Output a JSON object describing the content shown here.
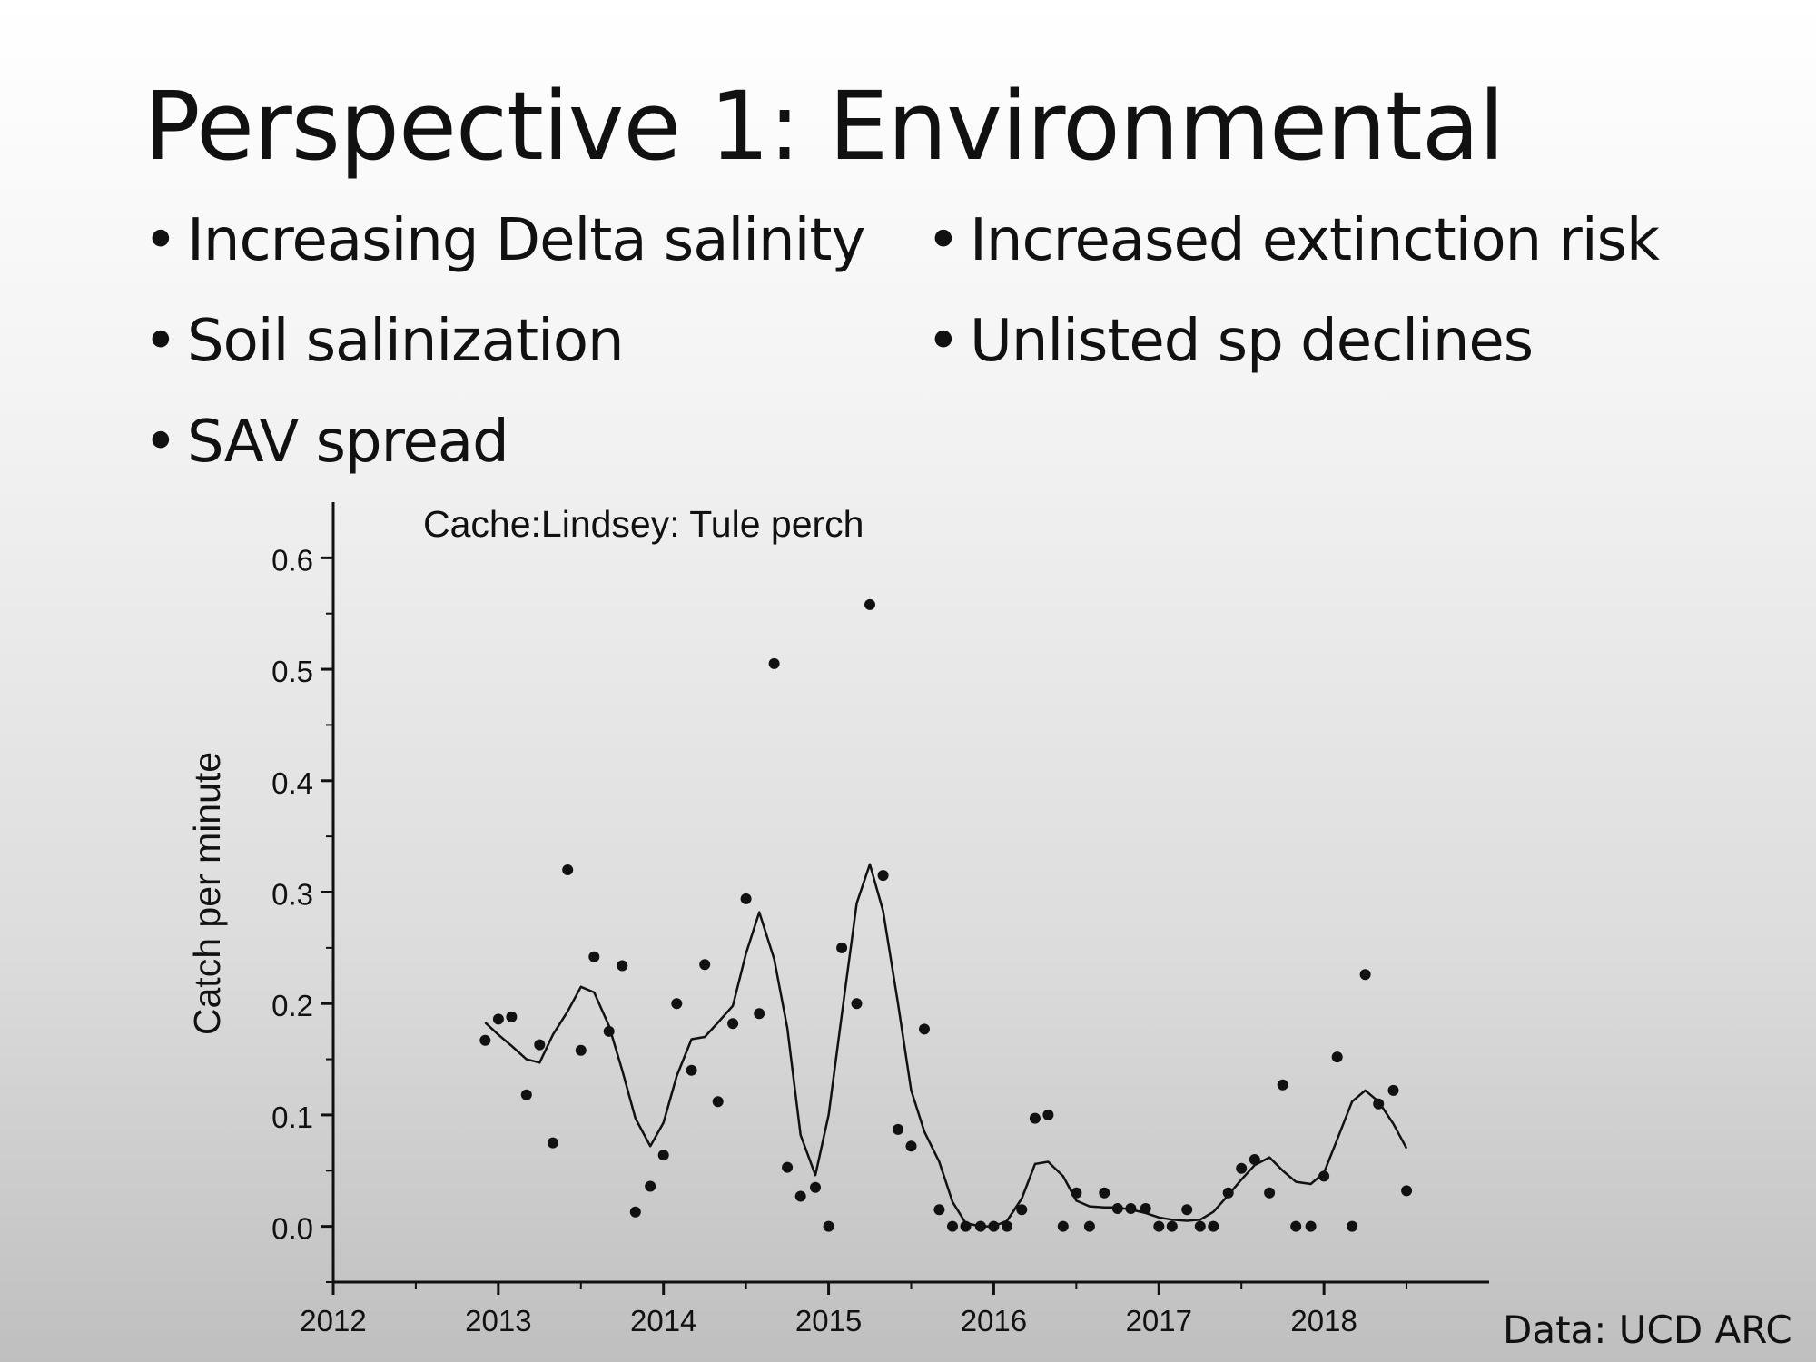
{
  "slide": {
    "title": "Perspective 1: Environmental",
    "bullets_left": [
      "Increasing Delta salinity",
      "Soil salinization",
      "SAV spread"
    ],
    "bullets_right": [
      "Increased extinction risk",
      "Unlisted sp declines"
    ],
    "credit": "Data: UCD ARC"
  },
  "chart_data": {
    "type": "scatter",
    "title": "Cache:Lindsey: Tule perch",
    "xlabel": "",
    "ylabel": "Catch per minute",
    "xlim": [
      2012,
      2019
    ],
    "ylim": [
      -0.05,
      0.65
    ],
    "xticks": [
      2012,
      2013,
      2014,
      2015,
      2016,
      2017,
      2018
    ],
    "yticks": [
      0.0,
      0.1,
      0.2,
      0.3,
      0.4,
      0.5,
      0.6
    ],
    "ytick_labels": [
      "0.0",
      "0.1",
      "0.2",
      "0.3",
      "0.4",
      "0.5",
      "0.6"
    ],
    "grid": false,
    "legend": "none",
    "series": [
      {
        "kind": "points",
        "x": [
          2012.92,
          2013.0,
          2013.08,
          2013.17,
          2013.25,
          2013.33,
          2013.42,
          2013.5,
          2013.58,
          2013.67,
          2013.75,
          2013.83,
          2013.92,
          2014.0,
          2014.08,
          2014.17,
          2014.25,
          2014.33,
          2014.42,
          2014.5,
          2014.58,
          2014.67,
          2014.75,
          2014.83,
          2014.92,
          2015.0,
          2015.08,
          2015.17,
          2015.25,
          2015.33,
          2015.42,
          2015.5,
          2015.58,
          2015.67,
          2015.75,
          2015.83,
          2015.92,
          2016.0,
          2016.08,
          2016.17,
          2016.25,
          2016.33,
          2016.42,
          2016.5,
          2016.58,
          2016.67,
          2016.75,
          2016.83,
          2016.92,
          2017.0,
          2017.08,
          2017.17,
          2017.25,
          2017.33,
          2017.42,
          2017.5,
          2017.58,
          2017.67,
          2017.75,
          2017.83,
          2017.92,
          2018.0,
          2018.08,
          2018.17,
          2018.25,
          2018.33,
          2018.42,
          2018.5
        ],
        "y": [
          0.167,
          0.186,
          0.188,
          0.118,
          0.163,
          0.075,
          0.32,
          0.158,
          0.242,
          0.175,
          0.234,
          0.013,
          0.036,
          0.064,
          0.2,
          0.14,
          0.235,
          0.112,
          0.182,
          0.294,
          0.191,
          0.505,
          0.053,
          0.027,
          0.035,
          0.0,
          0.25,
          0.2,
          0.558,
          0.315,
          0.087,
          0.072,
          0.177,
          0.015,
          0.0,
          0.0,
          0.0,
          0.0,
          0.0,
          0.015,
          0.097,
          0.1,
          0.0,
          0.03,
          0.0,
          0.03,
          0.016,
          0.016,
          0.016,
          0.0,
          0.0,
          0.015,
          0.0,
          0.0,
          0.03,
          0.052,
          0.06,
          0.03,
          0.127,
          0.0,
          0.0,
          0.045,
          0.152,
          0.0,
          0.226,
          0.11,
          0.122,
          0.032
        ]
      },
      {
        "kind": "line",
        "x": [
          2012.92,
          2013.0,
          2013.08,
          2013.17,
          2013.25,
          2013.33,
          2013.42,
          2013.5,
          2013.58,
          2013.67,
          2013.75,
          2013.83,
          2013.92,
          2014.0,
          2014.08,
          2014.17,
          2014.25,
          2014.33,
          2014.42,
          2014.5,
          2014.58,
          2014.67,
          2014.75,
          2014.83,
          2014.92,
          2015.0,
          2015.08,
          2015.17,
          2015.25,
          2015.33,
          2015.42,
          2015.5,
          2015.58,
          2015.67,
          2015.75,
          2015.83,
          2015.92,
          2016.0,
          2016.08,
          2016.17,
          2016.25,
          2016.33,
          2016.42,
          2016.5,
          2016.58,
          2016.67,
          2016.75,
          2016.83,
          2016.92,
          2017.0,
          2017.08,
          2017.17,
          2017.25,
          2017.33,
          2017.42,
          2017.5,
          2017.58,
          2017.67,
          2017.75,
          2017.83,
          2017.92,
          2018.0,
          2018.08,
          2018.17,
          2018.25,
          2018.33,
          2018.42,
          2018.5
        ],
        "y": [
          0.183,
          0.172,
          0.162,
          0.15,
          0.147,
          0.172,
          0.193,
          0.215,
          0.21,
          0.18,
          0.14,
          0.097,
          0.072,
          0.093,
          0.135,
          0.168,
          0.17,
          0.183,
          0.198,
          0.245,
          0.282,
          0.24,
          0.178,
          0.082,
          0.046,
          0.1,
          0.19,
          0.29,
          0.325,
          0.283,
          0.2,
          0.122,
          0.085,
          0.058,
          0.022,
          0.003,
          0.0,
          0.0,
          0.005,
          0.025,
          0.056,
          0.058,
          0.045,
          0.023,
          0.018,
          0.017,
          0.017,
          0.015,
          0.012,
          0.008,
          0.006,
          0.005,
          0.006,
          0.013,
          0.028,
          0.042,
          0.055,
          0.062,
          0.05,
          0.04,
          0.038,
          0.048,
          0.078,
          0.112,
          0.122,
          0.112,
          0.092,
          0.07
        ]
      }
    ]
  }
}
